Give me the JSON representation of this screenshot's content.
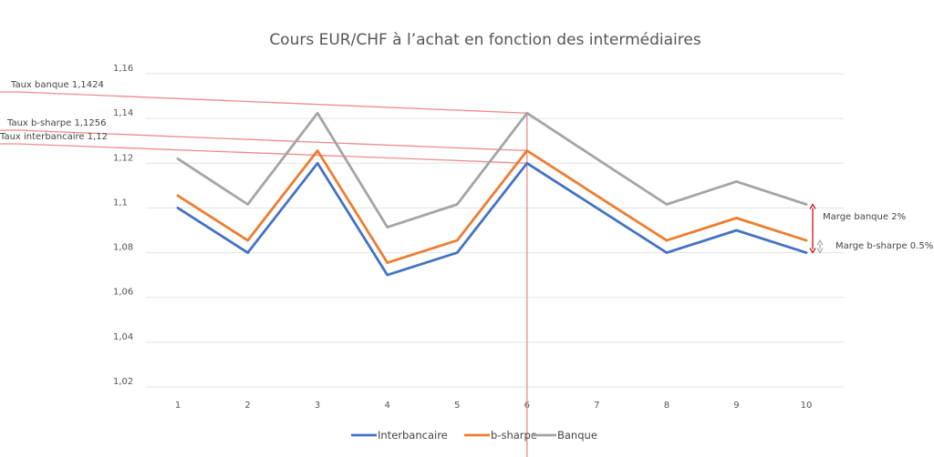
{
  "chart_data": {
    "type": "line",
    "title": "Cours EUR/CHF à l’achat en fonction des intermédiaires",
    "xlabel": "",
    "ylabel": "",
    "categories": [
      "1",
      "2",
      "3",
      "4",
      "5",
      "6",
      "7",
      "8",
      "9",
      "10"
    ],
    "ylim": [
      1.02,
      1.16
    ],
    "y_ticks": [
      "1,02",
      "1,04",
      "1,06",
      "1,08",
      "1,1",
      "1,12",
      "1,14",
      "1,16"
    ],
    "grid": true,
    "legend_position": "bottom",
    "series": [
      {
        "name": "Interbancaire",
        "color": "#4472C4",
        "values": [
          1.1,
          1.08,
          1.12,
          1.07,
          1.08,
          1.12,
          1.1,
          1.08,
          1.09,
          1.08
        ]
      },
      {
        "name": "b-sharpe",
        "color": "#ED7D31",
        "values": [
          1.1055,
          1.0855,
          1.1256,
          1.0755,
          1.0855,
          1.1256,
          1.1055,
          1.0855,
          1.0955,
          1.0855
        ]
      },
      {
        "name": "Banque",
        "color": "#A5A5A5",
        "values": [
          1.122,
          1.1016,
          1.1424,
          1.0914,
          1.1016,
          1.1424,
          1.122,
          1.1016,
          1.1118,
          1.1016
        ]
      }
    ],
    "reference_lines": [
      {
        "label": "Taux banque 1,1424",
        "value": 1.1424,
        "color": "#F08A8A"
      },
      {
        "label": "Taux b-sharpe 1,1256",
        "value": 1.1256,
        "color": "#F08A8A"
      },
      {
        "label": "Taux interbancaire 1,12",
        "value": 1.12,
        "color": "#F08A8A"
      }
    ],
    "vertical_reference": {
      "category": "6",
      "color": "#F08A8A"
    },
    "margin_annotations": [
      {
        "label": "Marge banque 2%",
        "from": 1.08,
        "to": 1.1016,
        "color": "#C00000"
      },
      {
        "label": "Marge b-sharpe 0.5%",
        "from": 1.08,
        "to": 1.0855,
        "color": "#A5A5A5"
      }
    ]
  }
}
